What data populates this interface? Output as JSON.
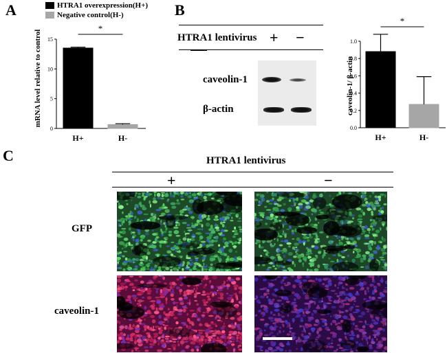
{
  "panels": {
    "a": "A",
    "b": "B",
    "c": "C"
  },
  "panel_a": {
    "legend": [
      {
        "label": "HTRA1 overexpression(H+)",
        "color": "#000000"
      },
      {
        "label": "Negative control(H-)",
        "color": "#a6a6a6"
      }
    ],
    "significance": "*"
  },
  "panel_b": {
    "blot": {
      "treatment_label": "HTRA1 lentivirus",
      "plus": "+",
      "minus": "−",
      "rows": [
        "caveolin-1",
        "β-actin"
      ]
    },
    "significance": "*"
  },
  "panel_c": {
    "treatment_label": "HTRA1 lentivirus",
    "plus": "+",
    "minus": "−",
    "rows": [
      "GFP",
      "caveolin-1"
    ]
  },
  "chart_data": [
    {
      "type": "bar",
      "panel": "A",
      "categories": [
        "H+",
        "H-"
      ],
      "values": [
        13.5,
        0.65
      ],
      "errors": [
        0.15,
        0.15
      ],
      "colors": [
        "#000000",
        "#a6a6a6"
      ],
      "ylabel": "mRNA level relative to control",
      "ylim": [
        0,
        15
      ],
      "yticks": [
        "0",
        "5",
        "10",
        "15"
      ]
    },
    {
      "type": "bar",
      "panel": "B",
      "categories": [
        "H+",
        "H-"
      ],
      "values": [
        0.88,
        0.27
      ],
      "errors": [
        0.2,
        0.32
      ],
      "colors": [
        "#000000",
        "#a6a6a6"
      ],
      "ylabel": "caveolin-1/ β-actin",
      "ylim": [
        0,
        1.0
      ],
      "yticks": [
        "0.0",
        "0.2",
        "0.4",
        "0.6",
        "0.8",
        "1.0"
      ]
    }
  ]
}
